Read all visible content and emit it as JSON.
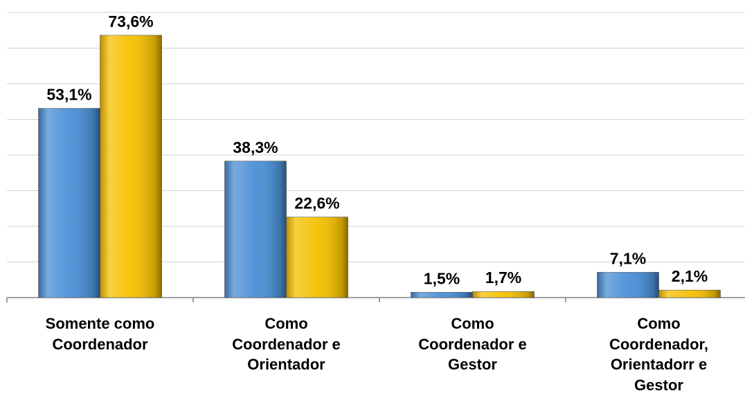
{
  "chart_data": {
    "type": "bar",
    "categories": [
      "Somente como Coordenador",
      "Como Coordenador e Orientador",
      "Como Coordenador e Gestor",
      "Como Coordenador, Orientadorr e Gestor"
    ],
    "series": [
      {
        "color": "#4a8fd6",
        "values": [
          53.1,
          38.3,
          1.5,
          7.1
        ],
        "value_labels": [
          "53,1%",
          "38,3%",
          "1,5%",
          "7,1%"
        ]
      },
      {
        "color": "#f5c000",
        "values": [
          73.6,
          22.6,
          1.7,
          2.1
        ],
        "value_labels": [
          "73,6%",
          "22,6%",
          "1,7%",
          "2,1%"
        ]
      }
    ],
    "ylim": [
      0,
      80
    ],
    "yticks": [
      0,
      10,
      20,
      30,
      40,
      50,
      60,
      70,
      80
    ],
    "grid": true
  }
}
